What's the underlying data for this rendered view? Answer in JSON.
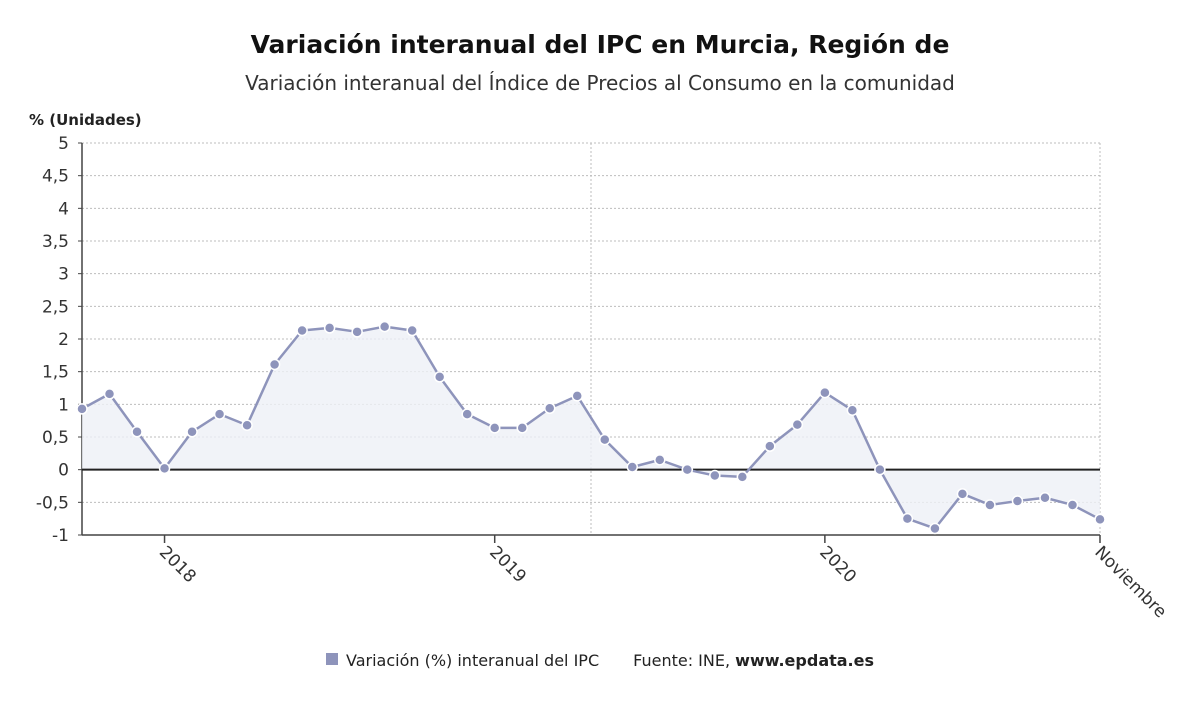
{
  "chart_data": {
    "type": "area",
    "title": "Variación interanual del IPC en Murcia, Región de",
    "subtitle": "Variación interanual del Índice de Precios al Consumo en la comunidad",
    "ylabel": "% (Unidades)",
    "ylim": [
      -1,
      5
    ],
    "yticks": [
      5,
      4.5,
      4,
      3.5,
      3,
      2.5,
      2,
      1.5,
      1,
      0.5,
      0,
      -0.5,
      -1
    ],
    "ytick_labels": [
      "5",
      "4,5",
      "4",
      "3,5",
      "3",
      "2,5",
      "2",
      "1,5",
      "1",
      "0,5",
      "0",
      "-0,5",
      "-1"
    ],
    "xtick_labels": [
      "2018",
      "2019",
      "2020",
      "Noviembre"
    ],
    "grid": true,
    "series": [
      {
        "name": "Variación (%) interanual del IPC",
        "color": "#8e94bb",
        "x": [
          "2017-10",
          "2017-11",
          "2017-12",
          "2018-01",
          "2018-02",
          "2018-03",
          "2018-04",
          "2018-05",
          "2018-06",
          "2018-07",
          "2018-08",
          "2018-09",
          "2018-10",
          "2018-11",
          "2018-12",
          "2019-01",
          "2019-02",
          "2019-03",
          "2019-04",
          "2019-05",
          "2019-06",
          "2019-07",
          "2019-08",
          "2019-09",
          "2019-10",
          "2019-11",
          "2019-12",
          "2020-01",
          "2020-02",
          "2020-03",
          "2020-04",
          "2020-05",
          "2020-06",
          "2020-07",
          "2020-08",
          "2020-09",
          "2020-10",
          "2020-11"
        ],
        "values": [
          0.93,
          1.16,
          0.58,
          0.02,
          0.58,
          0.85,
          0.68,
          1.61,
          2.13,
          2.17,
          2.11,
          2.19,
          2.13,
          1.42,
          0.85,
          0.64,
          0.64,
          0.94,
          1.13,
          0.46,
          0.04,
          0.15,
          0.0,
          -0.09,
          -0.11,
          0.36,
          0.69,
          1.18,
          0.91,
          0.0,
          -0.75,
          -0.9,
          -0.37,
          -0.54,
          -0.48,
          -0.43,
          -0.54,
          -0.76
        ]
      }
    ],
    "source_label": "Fuente: INE,",
    "source_site": "www.epdata.es",
    "legend_position": "bottom"
  }
}
